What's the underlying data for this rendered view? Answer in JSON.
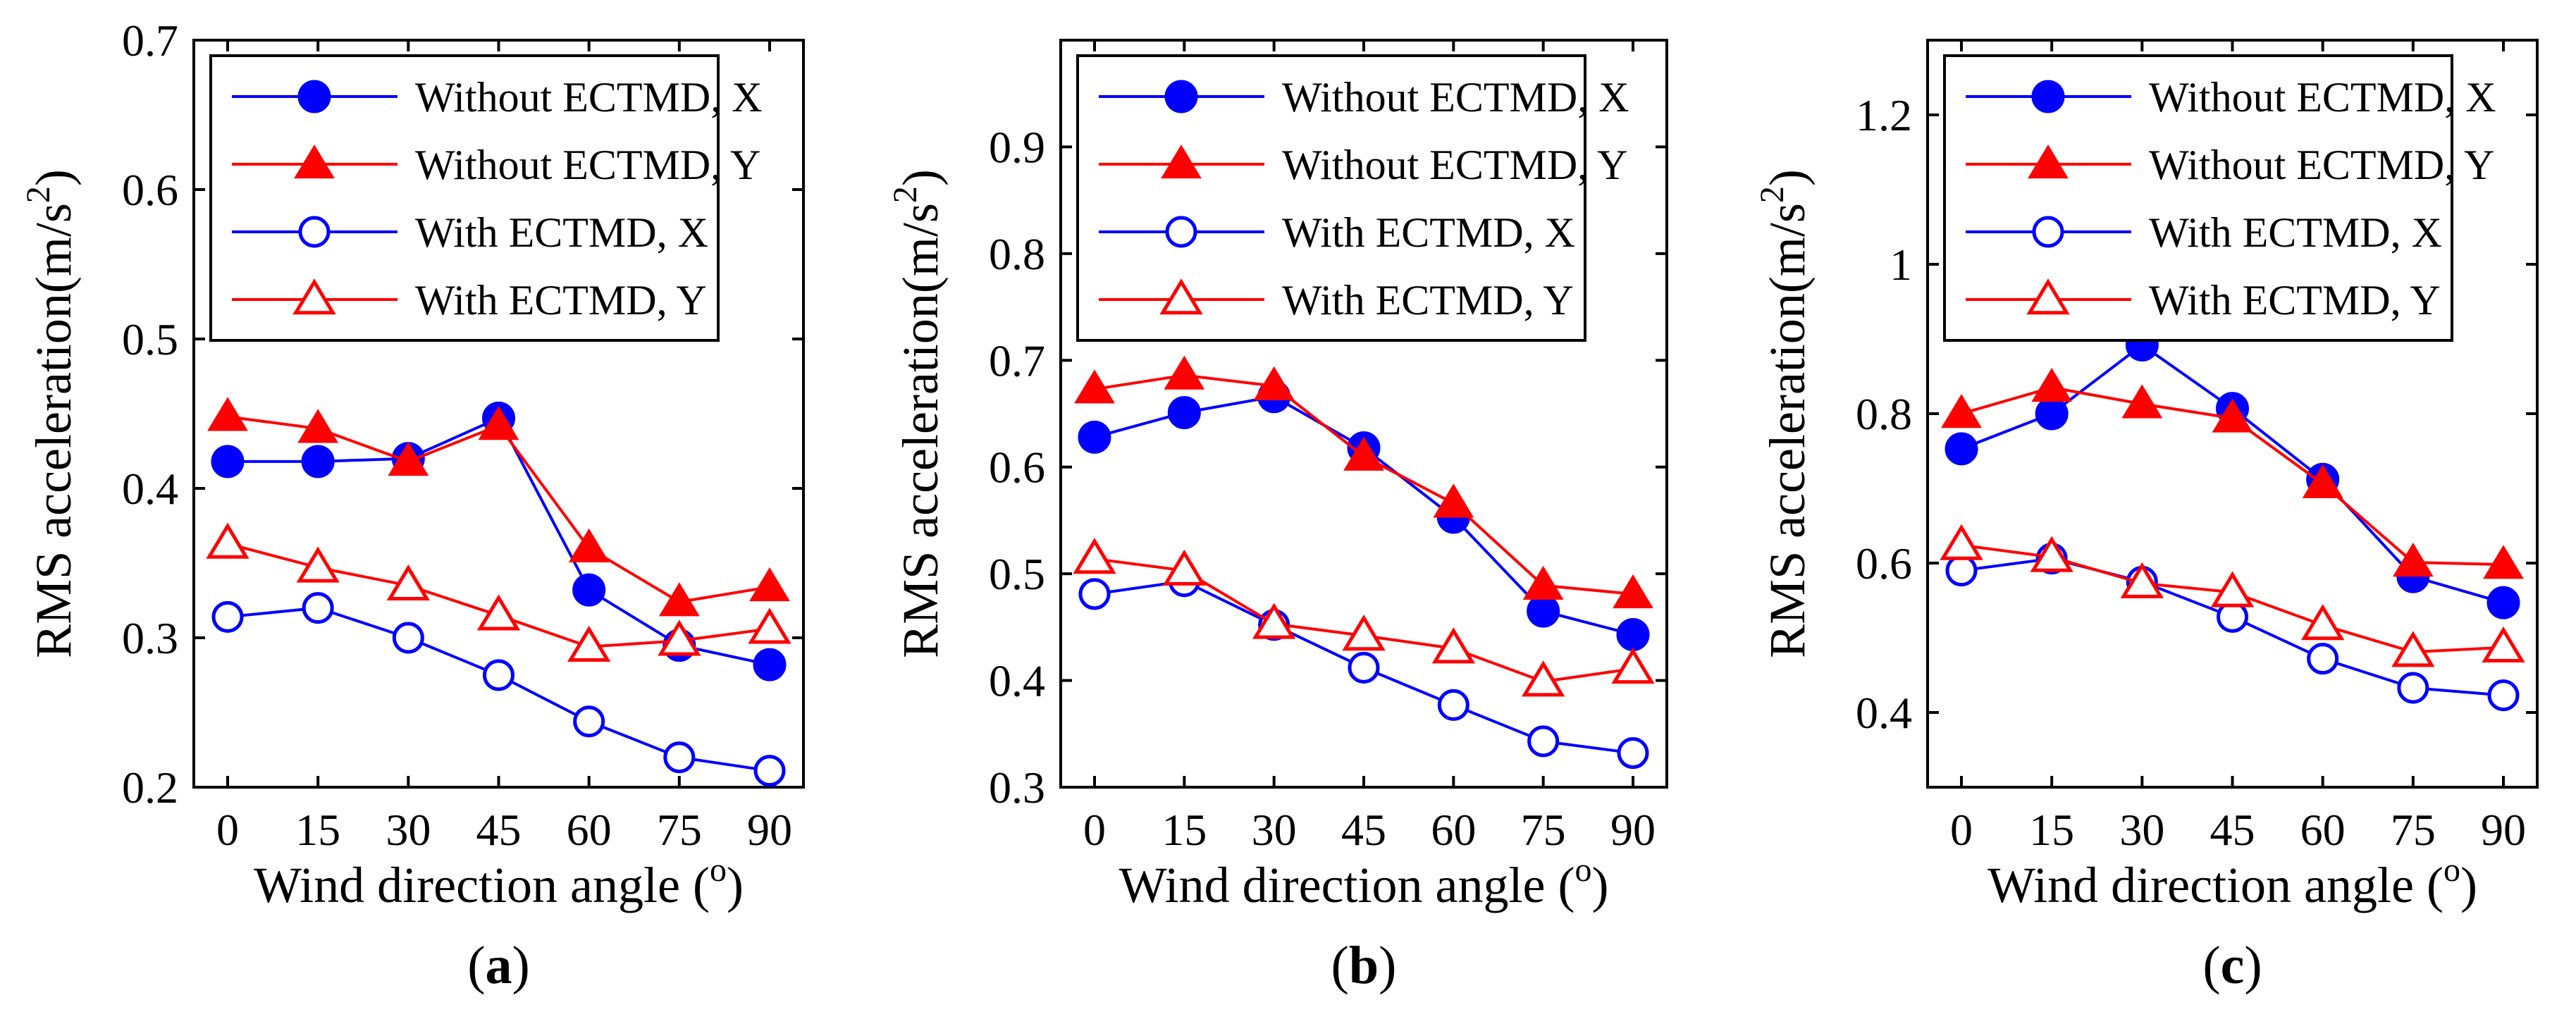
{
  "colors": {
    "blue": "#0000ff",
    "red": "#ff0000",
    "axis": "#000000",
    "background": "#ffffff"
  },
  "figure": {
    "x_tick_labels": [
      "0",
      "15",
      "30",
      "45",
      "60",
      "75",
      "90"
    ],
    "xlabel_main": "Wind direction angle (",
    "xlabel_sup": "o",
    "xlabel_close": ")",
    "ylabel_main": "RMS acceleration(m/s",
    "ylabel_sup": "2",
    "ylabel_close": ")"
  },
  "chart_data": [
    {
      "type": "line",
      "caption": {
        "open": "(",
        "letter": "a",
        "close": ")"
      },
      "x": [
        0,
        15,
        30,
        45,
        60,
        75,
        90
      ],
      "xlim": [
        0,
        90
      ],
      "ylim": [
        0.2,
        0.7
      ],
      "yticks": [
        0.2,
        0.3,
        0.4,
        0.5,
        0.6,
        0.7
      ],
      "ytick_labels": [
        "0.2",
        "0.3",
        "0.4",
        "0.5",
        "0.6",
        "0.7"
      ],
      "legend_position": "top-left",
      "series": [
        {
          "name": "Without ECTMD, X",
          "color": "blue",
          "marker": "circle",
          "filled": true,
          "values": [
            0.418,
            0.418,
            0.42,
            0.447,
            0.332,
            0.295,
            0.282
          ]
        },
        {
          "name": "Without ECTMD, Y",
          "color": "red",
          "marker": "triangle",
          "filled": true,
          "values": [
            0.448,
            0.44,
            0.418,
            0.442,
            0.36,
            0.324,
            0.334
          ]
        },
        {
          "name": "With ECTMD, X",
          "color": "blue",
          "marker": "circle",
          "filled": false,
          "values": [
            0.314,
            0.32,
            0.3,
            0.275,
            0.244,
            0.22,
            0.211
          ]
        },
        {
          "name": "With ECTMD, Y",
          "color": "red",
          "marker": "triangle",
          "filled": false,
          "values": [
            0.363,
            0.347,
            0.335,
            0.315,
            0.294,
            0.298,
            0.306
          ]
        }
      ]
    },
    {
      "type": "line",
      "caption": {
        "open": "(",
        "letter": "b",
        "close": ")"
      },
      "x": [
        0,
        15,
        30,
        45,
        60,
        75,
        90
      ],
      "xlim": [
        0,
        90
      ],
      "ylim": [
        0.3,
        1.0
      ],
      "yticks": [
        0.3,
        0.4,
        0.5,
        0.6,
        0.7,
        0.8,
        0.9
      ],
      "ytick_labels": [
        "0.3",
        "0.4",
        "0.5",
        "0.6",
        "0.7",
        "0.8",
        "0.9"
      ],
      "legend_position": "top-left",
      "series": [
        {
          "name": "Without ECTMD, X",
          "color": "blue",
          "marker": "circle",
          "filled": true,
          "values": [
            0.628,
            0.651,
            0.666,
            0.618,
            0.553,
            0.465,
            0.443
          ]
        },
        {
          "name": "Without ECTMD, Y",
          "color": "red",
          "marker": "triangle",
          "filled": true,
          "values": [
            0.673,
            0.686,
            0.676,
            0.61,
            0.566,
            0.489,
            0.481
          ]
        },
        {
          "name": "With ECTMD, X",
          "color": "blue",
          "marker": "circle",
          "filled": false,
          "values": [
            0.481,
            0.493,
            0.452,
            0.412,
            0.377,
            0.343,
            0.332
          ]
        },
        {
          "name": "With ECTMD, Y",
          "color": "red",
          "marker": "triangle",
          "filled": false,
          "values": [
            0.514,
            0.503,
            0.453,
            0.442,
            0.43,
            0.399,
            0.411
          ]
        }
      ]
    },
    {
      "type": "line",
      "caption": {
        "open": "(",
        "letter": "c",
        "close": ")"
      },
      "x": [
        0,
        15,
        30,
        45,
        60,
        75,
        90
      ],
      "xlim": [
        0,
        90
      ],
      "ylim": [
        0.3,
        1.3
      ],
      "yticks": [
        0.4,
        0.6,
        0.8,
        1.0,
        1.2
      ],
      "ytick_labels": [
        "0.4",
        "0.6",
        "0.8",
        "1",
        "1.2"
      ],
      "legend_position": "top-left",
      "series": [
        {
          "name": "Without ECTMD, X",
          "color": "blue",
          "marker": "circle",
          "filled": true,
          "values": [
            0.753,
            0.8,
            0.892,
            0.807,
            0.712,
            0.582,
            0.547
          ]
        },
        {
          "name": "Without ECTMD, Y",
          "color": "red",
          "marker": "triangle",
          "filled": true,
          "values": [
            0.8,
            0.835,
            0.813,
            0.794,
            0.706,
            0.601,
            0.598
          ]
        },
        {
          "name": "With ECTMD, X",
          "color": "blue",
          "marker": "circle",
          "filled": false,
          "values": [
            0.59,
            0.606,
            0.575,
            0.528,
            0.472,
            0.433,
            0.423
          ]
        },
        {
          "name": "With ECTMD, Y",
          "color": "red",
          "marker": "triangle",
          "filled": false,
          "values": [
            0.624,
            0.608,
            0.573,
            0.561,
            0.517,
            0.481,
            0.487
          ]
        }
      ]
    }
  ]
}
